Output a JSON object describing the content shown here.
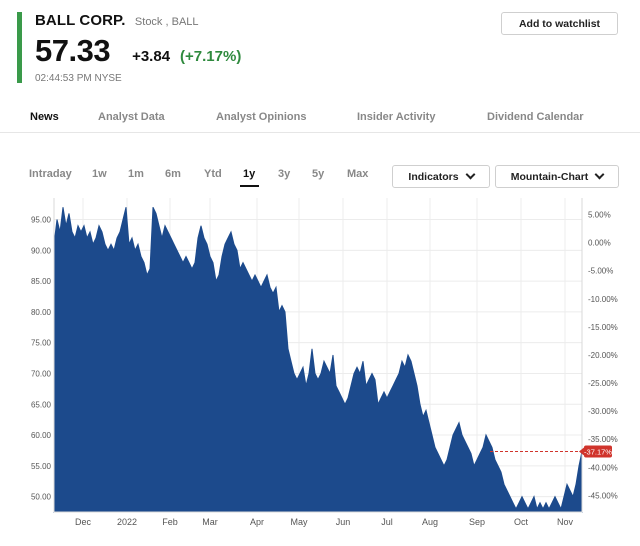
{
  "header": {
    "company": "BALL CORP.",
    "ticker_meta": "Stock , BALL",
    "price": "57.33",
    "change": "+3.84",
    "change_pct": "(+7.17%)",
    "timestamp": "02:44:53 PM  NYSE"
  },
  "watchlist_button": "Add to watchlist",
  "tabs": [
    "News",
    "Analyst Data",
    "Analyst Opinions",
    "Insider Activity",
    "Dividend Calendar"
  ],
  "active_tab": "News",
  "ranges": [
    "Intraday",
    "1w",
    "1m",
    "6m",
    "Ytd",
    "1y",
    "3y",
    "5y",
    "Max"
  ],
  "active_range": "1y",
  "dropdowns": {
    "indicators": "Indicators",
    "chart_type": "Mountain-Chart"
  },
  "colors": {
    "accent": "#3a9a4a",
    "area": "#1c4a8c",
    "positive": "#2f8a3e",
    "marker": "#d0342c"
  },
  "chart_data": {
    "type": "area",
    "x_ticks": [
      "Dec",
      "2022",
      "Feb",
      "Mar",
      "Apr",
      "May",
      "Jun",
      "Jul",
      "Aug",
      "Sep",
      "Oct",
      "Nov"
    ],
    "y_ticks": [
      "95.00",
      "90.00",
      "85.00",
      "80.00",
      "75.00",
      "70.00",
      "65.00",
      "60.00",
      "55.00",
      "50.00"
    ],
    "y_right_ticks": [
      "5.00%",
      "0.00%",
      "-5.00%",
      "-10.00%",
      "-15.00%",
      "-20.00%",
      "-25.00%",
      "-30.00%",
      "-35.00%",
      "-40.00%",
      "-45.00%"
    ],
    "ylim": [
      47.5,
      98.5
    ],
    "current_pct_label": "-37.17%",
    "current_value": 57.33,
    "series": [
      {
        "values": [
          91,
          95,
          93,
          97,
          94,
          96,
          93,
          92,
          94,
          93,
          94,
          92,
          93,
          91,
          92,
          94,
          93,
          91,
          90,
          91,
          90,
          92,
          93,
          95,
          97,
          91,
          92,
          90,
          91,
          89,
          88,
          86,
          87,
          97,
          96,
          94,
          92,
          94,
          93,
          92,
          91,
          90,
          89,
          88,
          89,
          88,
          87,
          88,
          92,
          94,
          92,
          91,
          89,
          88,
          85,
          86,
          89,
          91,
          92,
          93,
          91,
          90,
          87,
          88,
          87,
          86,
          85,
          86,
          85,
          84,
          85,
          86,
          84,
          83,
          84,
          80,
          81,
          80,
          74,
          72,
          70,
          69,
          70,
          71,
          68,
          70,
          74,
          70,
          69,
          70,
          72,
          71,
          70,
          73,
          68,
          67,
          66,
          65,
          66,
          68,
          70,
          71,
          70,
          72,
          68,
          69,
          70,
          69,
          65,
          66,
          67,
          66,
          67,
          68,
          69,
          70,
          72,
          71,
          73,
          72,
          70,
          68,
          65,
          63,
          64,
          62,
          60,
          58,
          57,
          56,
          55,
          56,
          58,
          60,
          61,
          62,
          60,
          59,
          58,
          57,
          55,
          56,
          57,
          58,
          60,
          59,
          58,
          56,
          55,
          54,
          52,
          51,
          50,
          49,
          48,
          49,
          50,
          49,
          48,
          49,
          50,
          48,
          49,
          48,
          49,
          48,
          49,
          50,
          49,
          48,
          50,
          52,
          51,
          50,
          52,
          55,
          57.33
        ]
      }
    ]
  }
}
